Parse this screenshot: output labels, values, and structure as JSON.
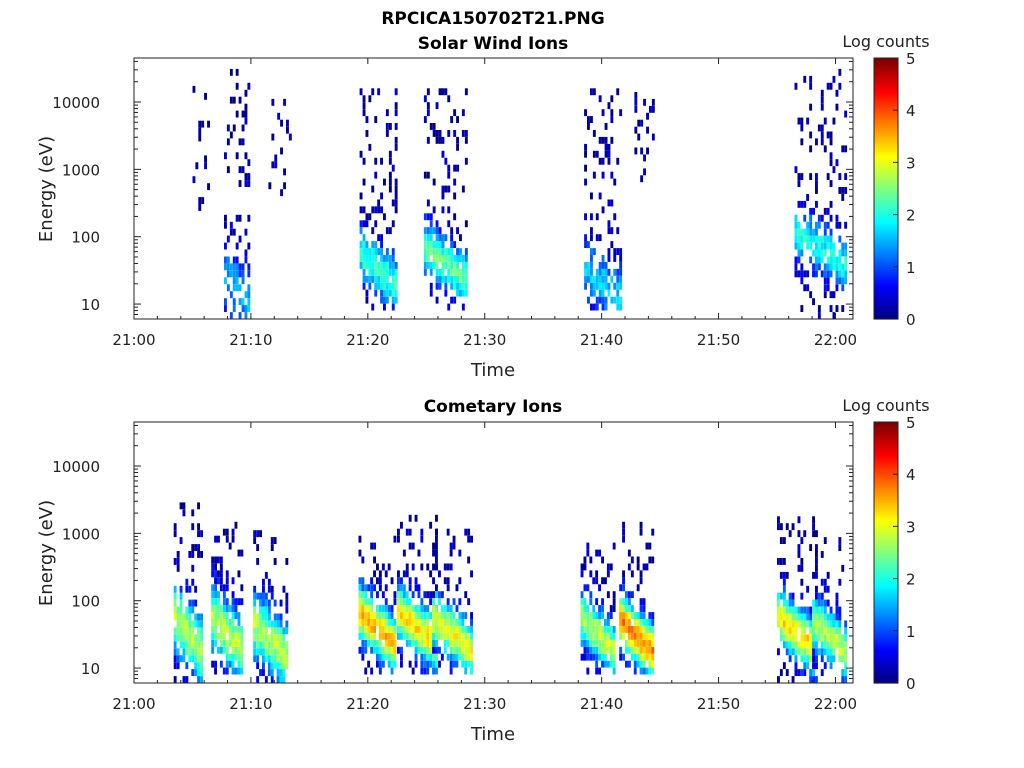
{
  "figure_title": "RPCICA150702T21.PNG",
  "chart_data": [
    {
      "type": "heatmap",
      "title": "Solar Wind Ions",
      "xlabel": "Time",
      "ylabel": "Energy (eV)",
      "y_scale": "log",
      "x_ticks": [
        "21:00",
        "21:10",
        "21:20",
        "21:30",
        "21:40",
        "21:50",
        "22:00"
      ],
      "y_ticks": [
        "10",
        "100",
        "1000",
        "10000"
      ],
      "xlim_minutes": [
        0,
        61.5
      ],
      "ylim": [
        6,
        45000
      ],
      "colorbar": {
        "label": "Log counts",
        "range": [
          0,
          5
        ],
        "ticks": [
          "0",
          "1",
          "2",
          "3",
          "4",
          "5"
        ],
        "colormap": "jet"
      },
      "patches": [
        {
          "t_start": 5.0,
          "t_end": 6.5,
          "e_low": 150,
          "e_high": 18000,
          "core": 0.3,
          "core_energy": 0,
          "core_width": 0
        },
        {
          "t_start": 7.7,
          "t_end": 9.8,
          "e_low": 6,
          "e_high": 28000,
          "core": 1.3,
          "core_energy": 12,
          "core_width": 0.6
        },
        {
          "t_start": 11.5,
          "t_end": 13.3,
          "e_low": 400,
          "e_high": 14000,
          "core": 0.3,
          "core_energy": 0,
          "core_width": 0
        },
        {
          "t_start": 19.3,
          "t_end": 22.5,
          "e_low": 8,
          "e_high": 14000,
          "core": 2.0,
          "core_energy": 25,
          "core_width": 0.4
        },
        {
          "t_start": 24.8,
          "t_end": 28.5,
          "e_low": 8,
          "e_high": 14000,
          "core": 2.2,
          "core_energy": 30,
          "core_width": 0.4
        },
        {
          "t_start": 38.5,
          "t_end": 41.7,
          "e_low": 8,
          "e_high": 14000,
          "core": 1.4,
          "core_energy": 15,
          "core_width": 0.5
        },
        {
          "t_start": 42.8,
          "t_end": 44.5,
          "e_low": 400,
          "e_high": 14000,
          "core": 0.3,
          "core_energy": 0,
          "core_width": 0
        },
        {
          "t_start": 56.5,
          "t_end": 61.0,
          "e_low": 6,
          "e_high": 30000,
          "core": 1.8,
          "core_energy": 50,
          "core_width": 0.4
        }
      ]
    },
    {
      "type": "heatmap",
      "title": "Cometary Ions",
      "xlabel": "Time",
      "ylabel": "Energy (eV)",
      "y_scale": "log",
      "x_ticks": [
        "21:00",
        "21:10",
        "21:20",
        "21:30",
        "21:40",
        "21:50",
        "22:00"
      ],
      "y_ticks": [
        "10",
        "100",
        "1000",
        "10000"
      ],
      "xlim_minutes": [
        0,
        61.5
      ],
      "ylim": [
        6,
        45000
      ],
      "colorbar": {
        "label": "Log counts",
        "range": [
          0,
          5
        ],
        "ticks": [
          "0",
          "1",
          "2",
          "3",
          "4",
          "5"
        ],
        "colormap": "jet"
      },
      "patches": [
        {
          "t_start": 3.4,
          "t_end": 5.7,
          "e_low": 6,
          "e_high": 2500,
          "core": 2.6,
          "core_energy": 25,
          "core_width": 0.5
        },
        {
          "t_start": 6.6,
          "t_end": 9.2,
          "e_low": 8,
          "e_high": 1200,
          "core": 2.6,
          "core_energy": 25,
          "core_width": 0.5
        },
        {
          "t_start": 10.2,
          "t_end": 13.0,
          "e_low": 6,
          "e_high": 900,
          "core": 2.6,
          "core_energy": 20,
          "core_width": 0.5
        },
        {
          "t_start": 19.2,
          "t_end": 22.3,
          "e_low": 8,
          "e_high": 800,
          "core": 3.3,
          "core_energy": 30,
          "core_width": 0.4
        },
        {
          "t_start": 22.5,
          "t_end": 26.0,
          "e_low": 8,
          "e_high": 2000,
          "core": 3.1,
          "core_energy": 30,
          "core_width": 0.4
        },
        {
          "t_start": 25.5,
          "t_end": 28.8,
          "e_low": 8,
          "e_high": 1000,
          "core": 2.9,
          "core_energy": 25,
          "core_width": 0.4
        },
        {
          "t_start": 38.2,
          "t_end": 41.0,
          "e_low": 8,
          "e_high": 600,
          "core": 2.6,
          "core_energy": 25,
          "core_width": 0.4
        },
        {
          "t_start": 41.5,
          "t_end": 44.5,
          "e_low": 8,
          "e_high": 1300,
          "core": 3.6,
          "core_energy": 22,
          "core_width": 0.4
        },
        {
          "t_start": 55.0,
          "t_end": 58.5,
          "e_low": 6,
          "e_high": 1500,
          "core": 3.1,
          "core_energy": 25,
          "core_width": 0.4
        },
        {
          "t_start": 58.0,
          "t_end": 61.0,
          "e_low": 6,
          "e_high": 700,
          "core": 2.6,
          "core_energy": 22,
          "core_width": 0.4
        }
      ]
    }
  ]
}
